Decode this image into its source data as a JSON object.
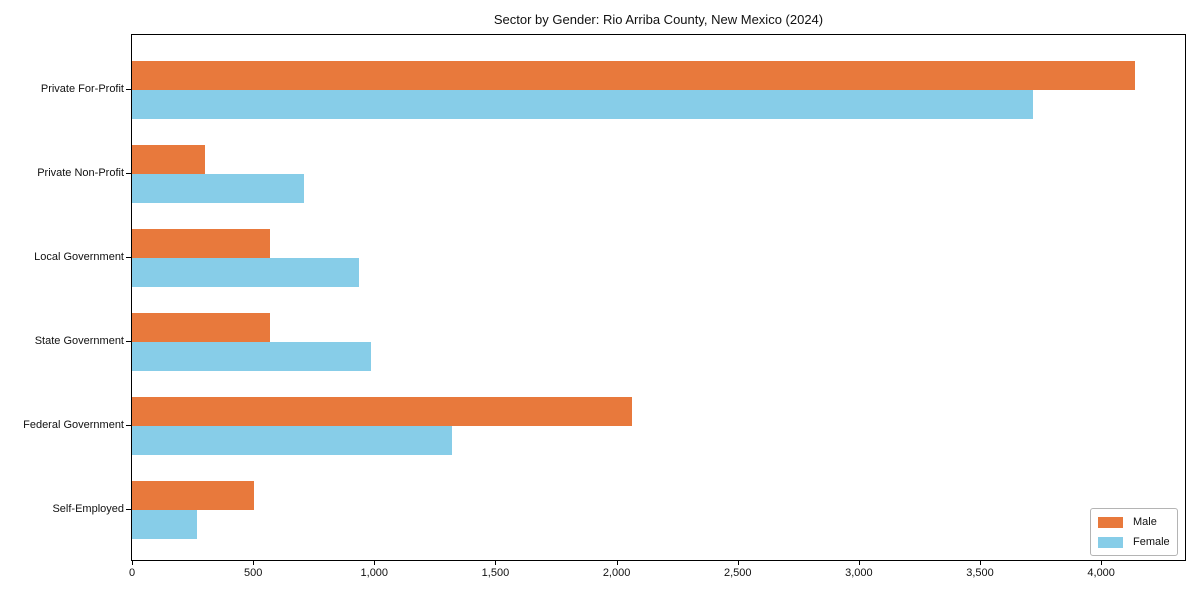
{
  "chart_data": {
    "type": "bar",
    "orientation": "horizontal",
    "title": "Sector by Gender: Rio Arriba County, New Mexico (2024)",
    "xlabel": "",
    "ylabel": "",
    "categories": [
      "Private For-Profit",
      "Private Non-Profit",
      "Local Government",
      "State Government",
      "Federal Government",
      "Self-Employed"
    ],
    "series": [
      {
        "name": "Male",
        "color": "#e8793c",
        "values": [
          4140,
          300,
          570,
          570,
          2065,
          505
        ]
      },
      {
        "name": "Female",
        "color": "#87cde8",
        "values": [
          3720,
          710,
          935,
          985,
          1320,
          270
        ]
      }
    ],
    "xlim": [
      0,
      4346
    ],
    "xticks": {
      "values": [
        0,
        500,
        1000,
        1500,
        2000,
        2500,
        3000,
        3500,
        4000
      ],
      "labels": [
        "0",
        "500",
        "1,000",
        "1,500",
        "2,000",
        "2,500",
        "3,000",
        "3,500",
        "4,000"
      ]
    },
    "grid": false,
    "legend": {
      "position": "lower right"
    }
  }
}
